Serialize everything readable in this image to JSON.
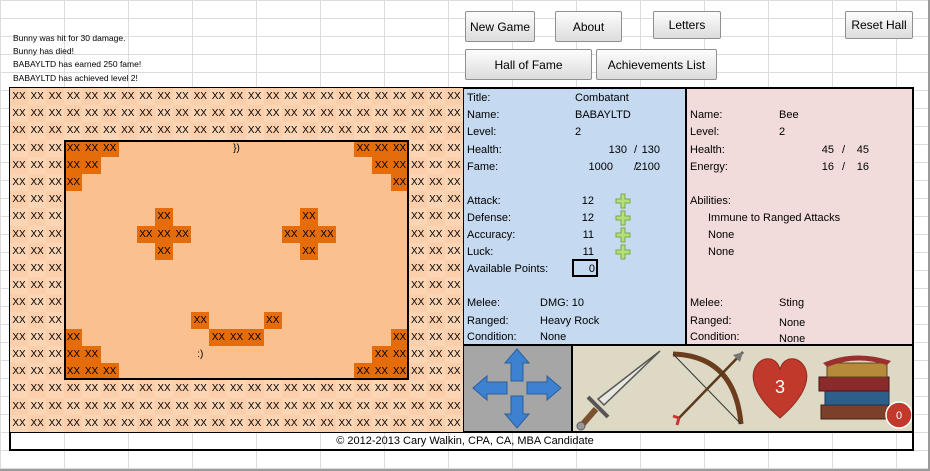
{
  "log": [
    "Bunny was hit for 30 damage.",
    "Bunny has died!",
    "BABAYLTD has earned 250 fame!",
    "BABAYLTD has achieved level 2!"
  ],
  "buttons": {
    "new_game": "New Game",
    "about": "About",
    "letters": "Letters",
    "reset_hall": "Reset Hall",
    "hall_of_fame": "Hall of Fame",
    "achievements": "Achievements List"
  },
  "map": [
    [
      "XX",
      "XX",
      "XX",
      "XX",
      "XX",
      "XX",
      "XX",
      "XX",
      "XX",
      "XX",
      "XX",
      "XX",
      "XX",
      "XX",
      "XX",
      "XX",
      "XX",
      "XX",
      "XX",
      "XX",
      "XX",
      "XX",
      "XX",
      "XX",
      "XX"
    ],
    [
      "XX",
      "XX",
      "XX",
      "XX",
      "XX",
      "XX",
      "XX",
      "XX",
      "XX",
      "XX",
      "XX",
      "XX",
      "XX",
      "XX",
      "XX",
      "XX",
      "XX",
      "XX",
      "XX",
      "XX",
      "XX",
      "XX",
      "XX",
      "XX",
      "XX"
    ],
    [
      "XX",
      "XX",
      "XX",
      "XX",
      "XX",
      "XX",
      "XX",
      "XX",
      "XX",
      "XX",
      "XX",
      "XX",
      "XX",
      "XX",
      "XX",
      "XX",
      "XX",
      "XX",
      "XX",
      "XX",
      "XX",
      "XX",
      "XX",
      "XX",
      "XX"
    ],
    [
      "XX",
      "XX",
      "XX",
      "XX",
      "XX",
      "XX",
      null,
      null,
      null,
      null,
      null,
      null,
      "})",
      null,
      null,
      null,
      null,
      null,
      null,
      "XX",
      "XX",
      "XX",
      "XX",
      "XX",
      "XX"
    ],
    [
      "XX",
      "XX",
      "XX",
      "XX",
      "XX",
      null,
      null,
      null,
      null,
      null,
      null,
      null,
      null,
      null,
      null,
      null,
      null,
      null,
      null,
      null,
      "XX",
      "XX",
      "XX",
      "XX",
      "XX"
    ],
    [
      "XX",
      "XX",
      "XX",
      "XX",
      null,
      null,
      null,
      null,
      null,
      null,
      null,
      null,
      null,
      null,
      null,
      null,
      null,
      null,
      null,
      null,
      null,
      "XX",
      "XX",
      "XX",
      "XX"
    ],
    [
      "XX",
      "XX",
      "XX",
      null,
      null,
      null,
      null,
      null,
      null,
      null,
      null,
      null,
      null,
      null,
      null,
      null,
      null,
      null,
      null,
      null,
      null,
      null,
      "XX",
      "XX",
      "XX"
    ],
    [
      "XX",
      "XX",
      "XX",
      null,
      null,
      null,
      null,
      null,
      "XX",
      null,
      null,
      null,
      null,
      null,
      null,
      null,
      "XX",
      null,
      null,
      null,
      null,
      null,
      "XX",
      "XX",
      "XX"
    ],
    [
      "XX",
      "XX",
      "XX",
      null,
      null,
      null,
      null,
      "XX",
      "XX",
      "XX",
      null,
      null,
      null,
      null,
      null,
      "XX",
      "XX",
      "XX",
      null,
      null,
      null,
      null,
      "XX",
      "XX",
      "XX"
    ],
    [
      "XX",
      "XX",
      "XX",
      null,
      null,
      null,
      null,
      null,
      "XX",
      null,
      null,
      null,
      null,
      null,
      null,
      null,
      "XX",
      null,
      null,
      null,
      null,
      null,
      "XX",
      "XX",
      "XX"
    ],
    [
      "XX",
      "XX",
      "XX",
      null,
      null,
      null,
      null,
      null,
      null,
      null,
      null,
      null,
      null,
      null,
      null,
      null,
      null,
      null,
      null,
      null,
      null,
      null,
      "XX",
      "XX",
      "XX"
    ],
    [
      "XX",
      "XX",
      "XX",
      null,
      null,
      null,
      null,
      null,
      null,
      null,
      null,
      null,
      null,
      null,
      null,
      null,
      null,
      null,
      null,
      null,
      null,
      null,
      "XX",
      "XX",
      "XX"
    ],
    [
      "XX",
      "XX",
      "XX",
      null,
      null,
      null,
      null,
      null,
      null,
      null,
      null,
      null,
      null,
      null,
      null,
      null,
      null,
      null,
      null,
      null,
      null,
      null,
      "XX",
      "XX",
      "XX"
    ],
    [
      "XX",
      "XX",
      "XX",
      null,
      null,
      null,
      null,
      null,
      null,
      null,
      "XX",
      null,
      null,
      null,
      "XX",
      null,
      null,
      null,
      null,
      null,
      null,
      null,
      "XX",
      "XX",
      "XX"
    ],
    [
      "XX",
      "XX",
      "XX",
      "XX",
      null,
      null,
      null,
      null,
      null,
      null,
      null,
      "XX",
      "XX",
      "XX",
      null,
      null,
      null,
      null,
      null,
      null,
      null,
      "XX",
      "XX",
      "XX",
      "XX"
    ],
    [
      "XX",
      "XX",
      "XX",
      "XX",
      "XX",
      null,
      null,
      null,
      null,
      null,
      ":)",
      null,
      null,
      null,
      null,
      null,
      null,
      null,
      null,
      null,
      "XX",
      "XX",
      "XX",
      "XX",
      "XX"
    ],
    [
      "XX",
      "XX",
      "XX",
      "XX",
      "XX",
      "XX",
      null,
      null,
      null,
      null,
      null,
      null,
      null,
      null,
      null,
      null,
      null,
      null,
      null,
      "XX",
      "XX",
      "XX",
      "XX",
      "XX",
      "XX"
    ],
    [
      "XX",
      "XX",
      "XX",
      "XX",
      "XX",
      "XX",
      "XX",
      "XX",
      "XX",
      "XX",
      "XX",
      "XX",
      "XX",
      "XX",
      "XX",
      "XX",
      "XX",
      "XX",
      "XX",
      "XX",
      "XX",
      "XX",
      "XX",
      "XX",
      "XX"
    ],
    [
      "XX",
      "XX",
      "XX",
      "XX",
      "XX",
      "XX",
      "XX",
      "XX",
      "XX",
      "XX",
      "XX",
      "XX",
      "XX",
      "XX",
      "XX",
      "XX",
      "XX",
      "XX",
      "XX",
      "XX",
      "XX",
      "XX",
      "XX",
      "XX",
      "XX"
    ],
    [
      "XX",
      "XX",
      "XX",
      "XX",
      "XX",
      "XX",
      "XX",
      "XX",
      "XX",
      "XX",
      "XX",
      "XX",
      "XX",
      "XX",
      "XX",
      "XX",
      "XX",
      "XX",
      "XX",
      "XX",
      "XX",
      "XX",
      "XX",
      "XX",
      "XX"
    ]
  ],
  "player": {
    "info": [
      {
        "label": "Title:",
        "value": "Combatant"
      },
      {
        "label": "Name:",
        "value": "BABAYLTD"
      },
      {
        "label": "Level:",
        "value": 2
      },
      {
        "label": "Health:",
        "value": 130,
        "separator": "/",
        "max": 130
      },
      {
        "label": "Fame:",
        "value": 1000,
        "separator": "/",
        "max": 2100
      }
    ],
    "attributes": [
      {
        "label": "Attack:",
        "value": 12
      },
      {
        "label": "Defense:",
        "value": 12
      },
      {
        "label": "Accuracy:",
        "value": 11
      },
      {
        "label": "Luck:",
        "value": 11
      }
    ],
    "points": {
      "label": "Available Points:",
      "value": 0
    },
    "combat": [
      {
        "label": "Melee:",
        "value": "DMG: 10"
      },
      {
        "label": "Ranged:",
        "value": "Heavy Rock"
      },
      {
        "label": "Condition:",
        "value": "None"
      }
    ]
  },
  "monster": {
    "info": [
      {
        "label": "Name:",
        "value": "Bee"
      },
      {
        "label": "Level:",
        "value": 2
      },
      {
        "label": "Health:",
        "value": 45,
        "separator": "/",
        "max": 45
      },
      {
        "label": "Energy:",
        "value": 16,
        "separator": "/",
        "max": 16
      }
    ],
    "abilities_label": "Abilities:",
    "abilities": [
      "Immune to Ranged Attacks",
      "None",
      "None"
    ],
    "combat": [
      {
        "label": "Melee:",
        "value": "Sting"
      },
      {
        "label": "Ranged:",
        "value": "None"
      },
      {
        "label": "Condition:",
        "value": "None"
      }
    ]
  },
  "inventory": {
    "lives": 3,
    "letters": 0
  },
  "footer": "© 2012-2013 Cary Walkin, CPA, CA, MBA Candidate"
}
